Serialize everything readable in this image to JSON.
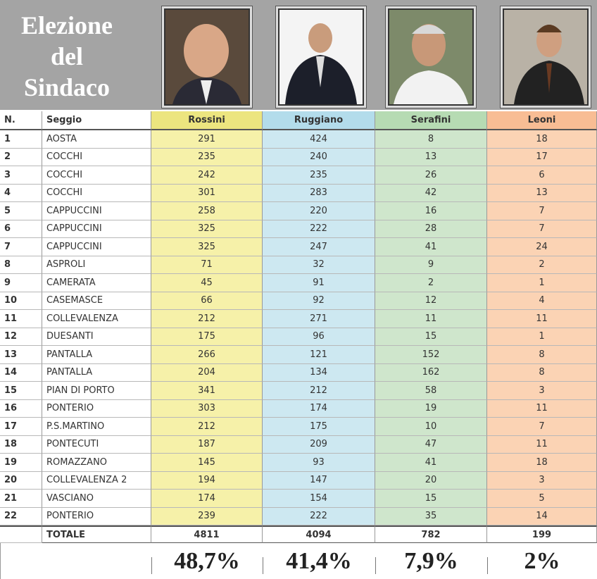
{
  "header": {
    "title": "Elezione del Sindaco"
  },
  "table": {
    "columns": [
      "N.",
      "Seggio",
      "Rossini",
      "Ruggiano",
      "Serafini",
      "Leoni"
    ],
    "rows": [
      [
        1,
        "AOSTA",
        291,
        424,
        8,
        18
      ],
      [
        2,
        "COCCHI",
        235,
        240,
        13,
        17
      ],
      [
        3,
        "COCCHI",
        242,
        235,
        26,
        6
      ],
      [
        4,
        "COCCHI",
        301,
        283,
        42,
        13
      ],
      [
        5,
        "CAPPUCCINI",
        258,
        220,
        16,
        7
      ],
      [
        6,
        "CAPPUCCINI",
        325,
        222,
        28,
        7
      ],
      [
        7,
        "CAPPUCCINI",
        325,
        247,
        41,
        24
      ],
      [
        8,
        "ASPROLI",
        71,
        32,
        9,
        2
      ],
      [
        9,
        "CAMERATA",
        45,
        91,
        2,
        1
      ],
      [
        10,
        "CASEMASCE",
        66,
        92,
        12,
        4
      ],
      [
        11,
        "COLLEVALENZA",
        212,
        271,
        11,
        11
      ],
      [
        12,
        "DUESANTI",
        175,
        96,
        15,
        1
      ],
      [
        13,
        "PANTALLA",
        266,
        121,
        152,
        8
      ],
      [
        14,
        "PANTALLA",
        204,
        134,
        162,
        8
      ],
      [
        15,
        "PIAN DI PORTO",
        341,
        212,
        58,
        3
      ],
      [
        16,
        "PONTERIO",
        303,
        174,
        19,
        11
      ],
      [
        17,
        "P.S.MARTINO",
        212,
        175,
        10,
        7
      ],
      [
        18,
        "PONTECUTI",
        187,
        209,
        47,
        11
      ],
      [
        19,
        "ROMAZZANO",
        145,
        93,
        41,
        18
      ],
      [
        20,
        "COLLEVALENZA 2",
        194,
        147,
        20,
        3
      ],
      [
        21,
        "VASCIANO",
        174,
        154,
        15,
        5
      ],
      [
        22,
        "PONTERIO",
        239,
        222,
        35,
        14
      ]
    ],
    "total": [
      "TOTALE",
      4811,
      4094,
      782,
      199
    ],
    "percentages": [
      "48,7%",
      "41,4%",
      "7,9%",
      "2%"
    ]
  }
}
